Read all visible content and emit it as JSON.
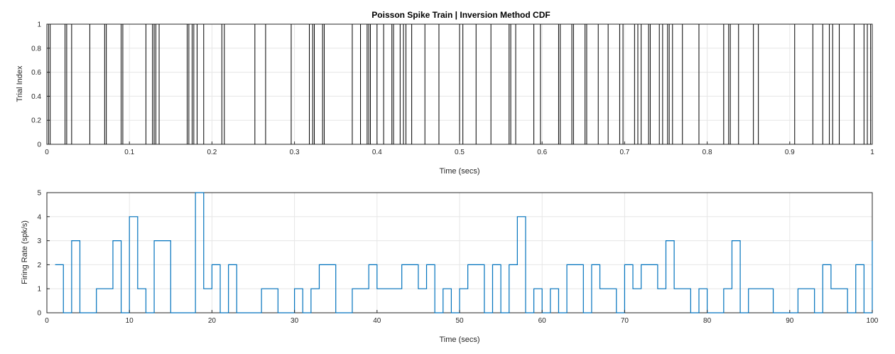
{
  "chart_data": [
    {
      "type": "raster",
      "title": "Poisson Spike Train | Inversion Method CDF",
      "xlabel": "Time (secs)",
      "ylabel": "Trial Index",
      "xlim": [
        0,
        1
      ],
      "ylim": [
        0,
        1
      ],
      "xticks": [
        "0",
        "0.1",
        "0.2",
        "0.3",
        "0.4",
        "0.5",
        "0.6",
        "0.7",
        "0.8",
        "0.9",
        "1"
      ],
      "yticks": [
        "0",
        "0.2",
        "0.4",
        "0.6",
        "0.8",
        "1"
      ],
      "grid": true,
      "spike_color": "#000000",
      "spike_times": [
        0.002,
        0.004,
        0.022,
        0.024,
        0.03,
        0.052,
        0.07,
        0.072,
        0.09,
        0.092,
        0.12,
        0.128,
        0.13,
        0.132,
        0.136,
        0.17,
        0.172,
        0.176,
        0.178,
        0.182,
        0.19,
        0.212,
        0.215,
        0.252,
        0.265,
        0.296,
        0.318,
        0.322,
        0.324,
        0.334,
        0.336,
        0.37,
        0.38,
        0.388,
        0.39,
        0.392,
        0.4,
        0.408,
        0.418,
        0.42,
        0.428,
        0.432,
        0.435,
        0.442,
        0.458,
        0.475,
        0.5,
        0.504,
        0.52,
        0.538,
        0.56,
        0.562,
        0.568,
        0.59,
        0.598,
        0.62,
        0.622,
        0.636,
        0.638,
        0.652,
        0.654,
        0.668,
        0.68,
        0.694,
        0.698,
        0.712,
        0.716,
        0.72,
        0.729,
        0.731,
        0.742,
        0.746,
        0.752,
        0.754,
        0.758,
        0.77,
        0.79,
        0.82,
        0.826,
        0.828,
        0.838,
        0.856,
        0.862,
        0.906,
        0.928,
        0.94,
        0.948,
        0.952,
        0.96,
        0.978,
        0.99,
        0.994,
        0.998
      ]
    },
    {
      "type": "stairs",
      "title": "",
      "xlabel": "Time (secs)",
      "ylabel": "Firing Rate (spk/s)",
      "xlim": [
        0,
        100
      ],
      "ylim": [
        0,
        5
      ],
      "xticks": [
        "0",
        "10",
        "20",
        "30",
        "40",
        "50",
        "60",
        "70",
        "80",
        "90",
        "100"
      ],
      "yticks": [
        "0",
        "1",
        "2",
        "3",
        "4",
        "5"
      ],
      "grid": true,
      "line_color": "#0072BD",
      "x": [
        1,
        2,
        3,
        4,
        5,
        6,
        7,
        8,
        9,
        10,
        11,
        12,
        13,
        14,
        15,
        16,
        17,
        18,
        19,
        20,
        21,
        22,
        23,
        24,
        25,
        26,
        27,
        28,
        29,
        30,
        31,
        32,
        33,
        34,
        35,
        36,
        37,
        38,
        39,
        40,
        41,
        42,
        43,
        44,
        45,
        46,
        47,
        48,
        49,
        50,
        51,
        52,
        53,
        54,
        55,
        56,
        57,
        58,
        59,
        60,
        61,
        62,
        63,
        64,
        65,
        66,
        67,
        68,
        69,
        70,
        71,
        72,
        73,
        74,
        75,
        76,
        77,
        78,
        79,
        80,
        81,
        82,
        83,
        84,
        85,
        86,
        87,
        88,
        89,
        90,
        91,
        92,
        93,
        94,
        95,
        96,
        97,
        98,
        99,
        100
      ],
      "values": [
        2,
        0,
        3,
        0,
        0,
        1,
        1,
        3,
        0,
        4,
        1,
        0,
        3,
        3,
        0,
        0,
        0,
        5,
        1,
        2,
        0,
        2,
        0,
        0,
        0,
        1,
        1,
        0,
        0,
        1,
        0,
        1,
        2,
        2,
        0,
        0,
        1,
        1,
        2,
        1,
        1,
        1,
        2,
        2,
        1,
        2,
        0,
        1,
        0,
        1,
        2,
        2,
        0,
        2,
        0,
        2,
        4,
        0,
        1,
        0,
        1,
        0,
        2,
        2,
        0,
        2,
        1,
        1,
        0,
        2,
        1,
        2,
        2,
        1,
        3,
        1,
        1,
        0,
        1,
        0,
        0,
        1,
        3,
        0,
        1,
        1,
        1,
        0,
        0,
        0,
        1,
        1,
        0,
        2,
        1,
        1,
        0,
        2,
        0,
        3
      ]
    }
  ]
}
